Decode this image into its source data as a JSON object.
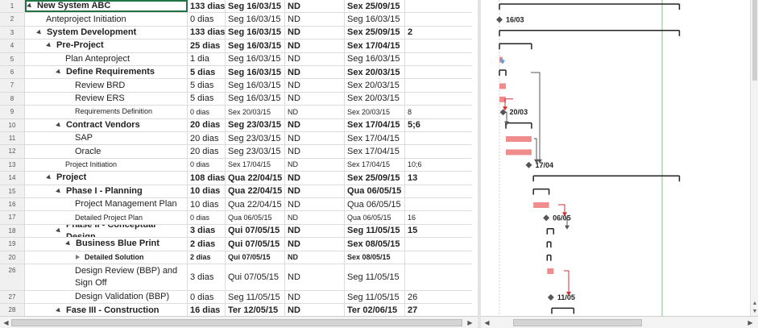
{
  "tasks": [
    {
      "id": "1",
      "name": "New System ABC",
      "dur": "133 dias",
      "start": "Seg 16/03/15",
      "nd": "ND",
      "finish": "Sex 25/09/15",
      "pred": "",
      "level": 0,
      "bold": true,
      "kind": "summary",
      "expanded": true
    },
    {
      "id": "2",
      "name": "Anteproject Initiation",
      "dur": "0 dias",
      "start": "Seg 16/03/15",
      "nd": "ND",
      "finish": "Seg 16/03/15",
      "pred": "",
      "level": 1,
      "bold": false,
      "kind": "milestone"
    },
    {
      "id": "3",
      "name": "System Development",
      "dur": "133 dias",
      "start": "Seg 16/03/15",
      "nd": "ND",
      "finish": "Sex 25/09/15",
      "pred": "2",
      "level": 1,
      "bold": true,
      "kind": "summary",
      "expanded": true
    },
    {
      "id": "4",
      "name": "Pre-Project",
      "dur": "25 dias",
      "start": "Seg 16/03/15",
      "nd": "ND",
      "finish": "Sex 17/04/15",
      "pred": "",
      "level": 2,
      "bold": true,
      "kind": "summary",
      "expanded": true
    },
    {
      "id": "5",
      "name": "Plan Anteproject",
      "dur": "1 dia",
      "start": "Seg 16/03/15",
      "nd": "ND",
      "finish": "Seg 16/03/15",
      "pred": "",
      "level": 3,
      "bold": false,
      "kind": "task"
    },
    {
      "id": "6",
      "name": "Define Requirements",
      "dur": "5 dias",
      "start": "Seg 16/03/15",
      "nd": "ND",
      "finish": "Sex 20/03/15",
      "pred": "",
      "level": 3,
      "bold": true,
      "kind": "summary",
      "expanded": true
    },
    {
      "id": "7",
      "name": "Review BRD",
      "dur": "5 dias",
      "start": "Seg 16/03/15",
      "nd": "ND",
      "finish": "Sex 20/03/15",
      "pred": "",
      "level": 4,
      "bold": false,
      "kind": "task"
    },
    {
      "id": "8",
      "name": "Review ERS",
      "dur": "5 dias",
      "start": "Seg 16/03/15",
      "nd": "ND",
      "finish": "Sex 20/03/15",
      "pred": "",
      "level": 4,
      "bold": false,
      "kind": "task"
    },
    {
      "id": "9",
      "name": "Requirements Definition",
      "dur": "0 dias",
      "start": "Sex 20/03/15",
      "nd": "ND",
      "finish": "Sex 20/03/15",
      "pred": "8",
      "level": 4,
      "bold": false,
      "kind": "milestone",
      "small": true
    },
    {
      "id": "10",
      "name": "Contract Vendors",
      "dur": "20 dias",
      "start": "Seg 23/03/15",
      "nd": "ND",
      "finish": "Sex 17/04/15",
      "pred": "5;6",
      "level": 3,
      "bold": true,
      "kind": "summary",
      "expanded": true
    },
    {
      "id": "11",
      "name": "SAP",
      "dur": "20 dias",
      "start": "Seg 23/03/15",
      "nd": "ND",
      "finish": "Sex 17/04/15",
      "pred": "",
      "level": 4,
      "bold": false,
      "kind": "task"
    },
    {
      "id": "12",
      "name": "Oracle",
      "dur": "20 dias",
      "start": "Seg 23/03/15",
      "nd": "ND",
      "finish": "Sex 17/04/15",
      "pred": "",
      "level": 4,
      "bold": false,
      "kind": "task"
    },
    {
      "id": "13",
      "name": "Project Initiation",
      "dur": "0 dias",
      "start": "Sex 17/04/15",
      "nd": "ND",
      "finish": "Sex 17/04/15",
      "pred": "10;6",
      "level": 3,
      "bold": false,
      "kind": "milestone",
      "small": true
    },
    {
      "id": "14",
      "name": "Project",
      "dur": "108 dias",
      "start": "Qua 22/04/15",
      "nd": "ND",
      "finish": "Sex 25/09/15",
      "pred": "13",
      "level": 2,
      "bold": true,
      "kind": "summary",
      "expanded": true
    },
    {
      "id": "15",
      "name": "Phase I - Planning",
      "dur": "10 dias",
      "start": "Qua 22/04/15",
      "nd": "ND",
      "finish": "Qua 06/05/15",
      "pred": "",
      "level": 3,
      "bold": true,
      "kind": "summary",
      "expanded": true
    },
    {
      "id": "16",
      "name": "Project Management Plan",
      "dur": "10 dias",
      "start": "Qua 22/04/15",
      "nd": "ND",
      "finish": "Qua 06/05/15",
      "pred": "",
      "level": 4,
      "bold": false,
      "kind": "task"
    },
    {
      "id": "17",
      "name": "Detailed Project Plan",
      "dur": "0 dias",
      "start": "Qua 06/05/15",
      "nd": "ND",
      "finish": "Qua 06/05/15",
      "pred": "16",
      "level": 4,
      "bold": false,
      "kind": "milestone",
      "small": true
    },
    {
      "id": "18",
      "name": "Phase II - Conceptual Design",
      "dur": "3 dias",
      "start": "Qui 07/05/15",
      "nd": "ND",
      "finish": "Seg 11/05/15",
      "pred": "15",
      "level": 3,
      "bold": true,
      "kind": "summary",
      "expanded": true
    },
    {
      "id": "19",
      "name": "Business Blue Print",
      "dur": "2 dias",
      "start": "Qui 07/05/15",
      "nd": "ND",
      "finish": "Sex 08/05/15",
      "pred": "",
      "level": 4,
      "bold": true,
      "kind": "summary",
      "expanded": true
    },
    {
      "id": "20",
      "name": "Detailed Solution",
      "dur": "2 dias",
      "start": "Qui 07/05/15",
      "nd": "ND",
      "finish": "Sex 08/05/15",
      "pred": "",
      "level": 5,
      "bold": true,
      "kind": "summary",
      "expanded": false,
      "small": true
    },
    {
      "id": "26",
      "name": "Design Review (BBP) and Sign Off",
      "dur": "3 dias",
      "start": "Qui 07/05/15",
      "nd": "ND",
      "finish": "Seg 11/05/15",
      "pred": "",
      "level": 4,
      "bold": false,
      "kind": "task",
      "tall": true
    },
    {
      "id": "27",
      "name": "Design Validation (BBP)",
      "dur": "0 dias",
      "start": "Seg 11/05/15",
      "nd": "ND",
      "finish": "Seg 11/05/15",
      "pred": "26",
      "level": 4,
      "bold": false,
      "kind": "milestone"
    },
    {
      "id": "28",
      "name": "Fase III - Construction",
      "dur": "16 dias",
      "start": "Ter 12/05/15",
      "nd": "ND",
      "finish": "Ter 02/06/15",
      "pred": "27",
      "level": 3,
      "bold": true,
      "kind": "summary",
      "expanded": true
    }
  ],
  "milestone_labels": {
    "m2": "16/03",
    "m9": "20/03",
    "m13": "17/04",
    "m17": "06/05",
    "m27": "11/05"
  },
  "colors": {
    "task_bar": "#f08c8c",
    "summary_bar": "#222222",
    "link": "#d03030",
    "today_line": "#7ec87e",
    "selection": "#217346"
  }
}
